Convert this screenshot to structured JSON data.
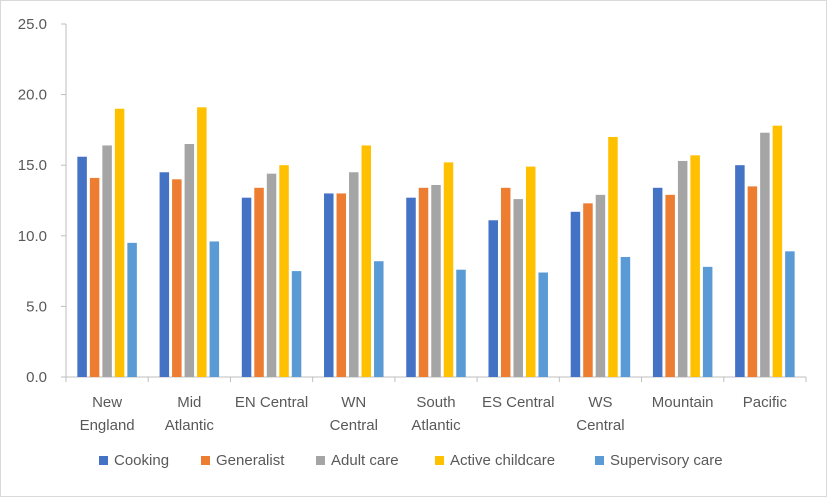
{
  "chart_data": {
    "type": "bar",
    "title": "",
    "xlabel": "",
    "ylabel": "",
    "ylim": [
      0,
      25
    ],
    "yticks": [
      "0.0",
      "5.0",
      "10.0",
      "15.0",
      "20.0",
      "25.0"
    ],
    "grid": false,
    "legend_position": "bottom",
    "categories": [
      [
        "New",
        "England"
      ],
      [
        "Mid",
        "Atlantic"
      ],
      [
        "EN Central"
      ],
      [
        "WN",
        "Central"
      ],
      [
        "South",
        "Atlantic"
      ],
      [
        "ES Central"
      ],
      [
        "WS",
        "Central"
      ],
      [
        "Mountain"
      ],
      [
        "Pacific"
      ]
    ],
    "series": [
      {
        "name": "Cooking",
        "color": "#4472C4",
        "values": [
          15.6,
          14.5,
          12.7,
          13.0,
          12.7,
          11.1,
          11.7,
          13.4,
          15.0
        ]
      },
      {
        "name": "Generalist",
        "color": "#ED7D31",
        "values": [
          14.1,
          14.0,
          13.4,
          13.0,
          13.4,
          13.4,
          12.3,
          12.9,
          13.5
        ]
      },
      {
        "name": "Adult care",
        "color": "#A5A5A5",
        "values": [
          16.4,
          16.5,
          14.4,
          14.5,
          13.6,
          12.6,
          12.9,
          15.3,
          17.3
        ]
      },
      {
        "name": "Active childcare",
        "color": "#FFC000",
        "values": [
          19.0,
          19.1,
          15.0,
          16.4,
          15.2,
          14.9,
          17.0,
          15.7,
          17.8
        ]
      },
      {
        "name": "Supervisory care",
        "color": "#5B9BD5",
        "values": [
          9.5,
          9.6,
          7.5,
          8.2,
          7.6,
          7.4,
          8.5,
          7.8,
          8.9
        ]
      }
    ]
  }
}
